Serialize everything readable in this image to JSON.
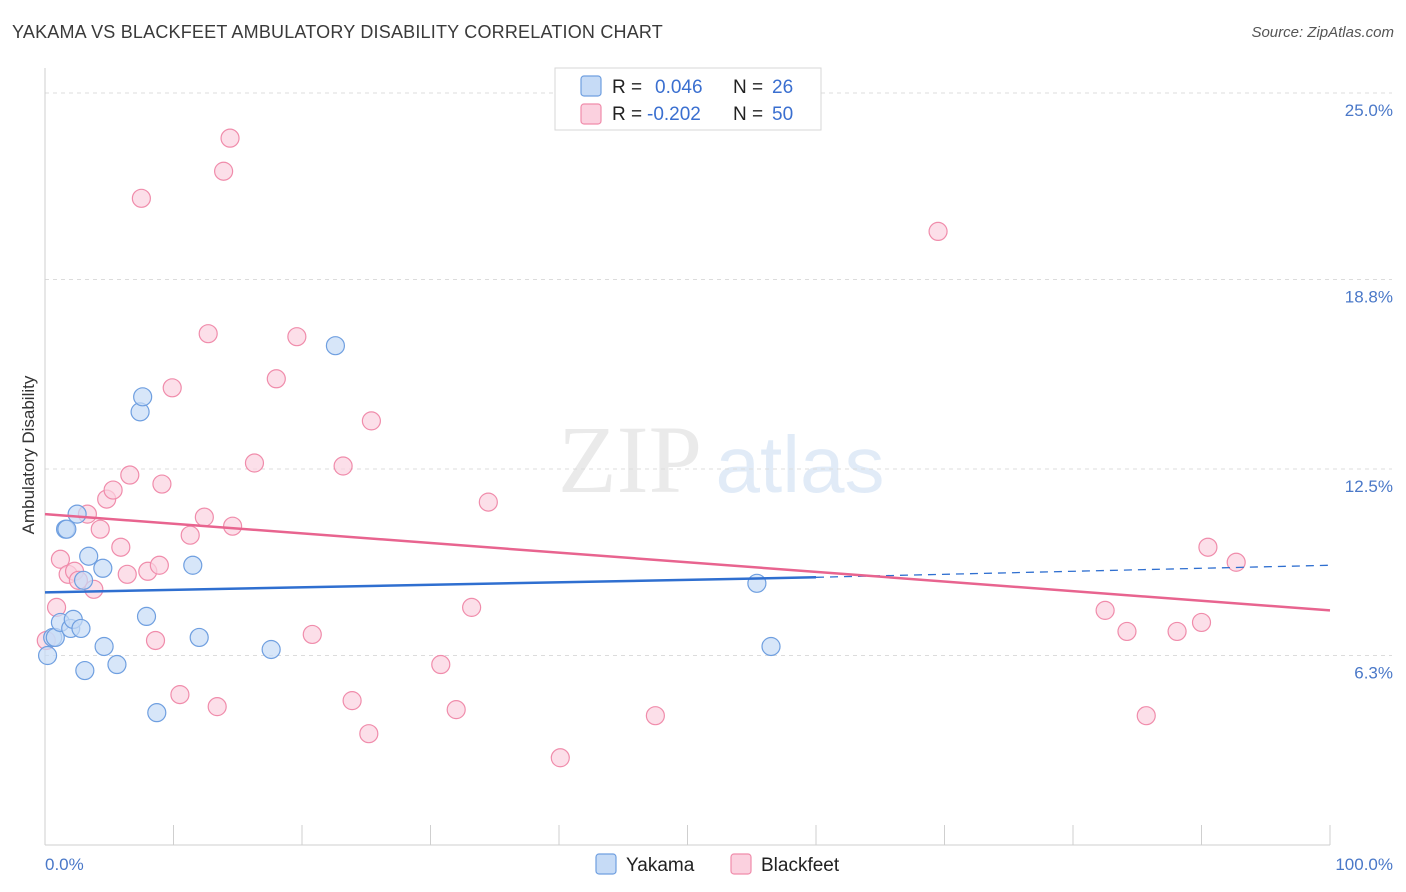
{
  "header": {
    "title": "YAKAMA VS BLACKFEET AMBULATORY DISABILITY CORRELATION CHART",
    "source": "Source: ZipAtlas.com"
  },
  "watermark": {
    "zip": "ZIP",
    "atlas": "atlas"
  },
  "legend": {
    "rows": [
      {
        "r_label": "R =",
        "r_value": "0.046",
        "n_label": "N =",
        "n_value": "26"
      },
      {
        "r_label": "R =",
        "r_value": "-0.202",
        "n_label": "N =",
        "n_value": "50"
      }
    ]
  },
  "bottom_legend": {
    "a": "Yakama",
    "b": "Blackfeet"
  },
  "chart_data": {
    "type": "scatter",
    "title": "YAKAMA VS BLACKFEET AMBULATORY DISABILITY CORRELATION CHART",
    "xlabel": "",
    "ylabel": "Ambulatory Disability",
    "xlim": [
      0,
      100
    ],
    "ylim": [
      0,
      25.5
    ],
    "x_tick_labels": [
      "0.0%",
      "100.0%"
    ],
    "y_ticks": [
      6.3,
      12.5,
      18.8,
      25.0
    ],
    "y_tick_labels": [
      "6.3%",
      "12.5%",
      "18.8%",
      "25.0%"
    ],
    "grid": true,
    "legend_placement": "top-center",
    "colors": {
      "yakama": "#6f9fe0",
      "yakama_line": "#2f6fd0",
      "blackfeet": "#f08cab",
      "blackfeet_line": "#e8648f"
    },
    "series": [
      {
        "name": "Yakama",
        "r": 0.046,
        "n": 26,
        "trend": {
          "x0": 0,
          "y0": 8.4,
          "x1": 60,
          "y1": 8.9,
          "dash_to_x": 100,
          "dash_to_y": 9.3
        },
        "points": [
          [
            0.2,
            6.3
          ],
          [
            0.6,
            6.9
          ],
          [
            0.8,
            6.9
          ],
          [
            1.2,
            7.4
          ],
          [
            1.6,
            10.5
          ],
          [
            1.7,
            10.5
          ],
          [
            2.0,
            7.2
          ],
          [
            2.2,
            7.5
          ],
          [
            2.5,
            11.0
          ],
          [
            2.8,
            7.2
          ],
          [
            3.0,
            8.8
          ],
          [
            3.1,
            5.8
          ],
          [
            3.4,
            9.6
          ],
          [
            4.5,
            9.2
          ],
          [
            4.6,
            6.6
          ],
          [
            5.6,
            6.0
          ],
          [
            7.4,
            14.4
          ],
          [
            7.6,
            14.9
          ],
          [
            7.9,
            7.6
          ],
          [
            8.7,
            4.4
          ],
          [
            11.5,
            9.3
          ],
          [
            12.0,
            6.9
          ],
          [
            17.6,
            6.5
          ],
          [
            22.6,
            16.6
          ],
          [
            55.4,
            8.7
          ],
          [
            56.5,
            6.6
          ]
        ]
      },
      {
        "name": "Blackfeet",
        "r": -0.202,
        "n": 50,
        "trend": {
          "x0": 0,
          "y0": 11.0,
          "x1": 100,
          "y1": 7.8
        },
        "points": [
          [
            0.1,
            6.8
          ],
          [
            0.9,
            7.9
          ],
          [
            1.2,
            9.5
          ],
          [
            1.8,
            9.0
          ],
          [
            2.3,
            9.1
          ],
          [
            2.6,
            8.8
          ],
          [
            3.3,
            11.0
          ],
          [
            3.8,
            8.5
          ],
          [
            4.3,
            10.5
          ],
          [
            4.8,
            11.5
          ],
          [
            5.3,
            11.8
          ],
          [
            5.9,
            9.9
          ],
          [
            6.4,
            9.0
          ],
          [
            6.6,
            12.3
          ],
          [
            7.5,
            21.5
          ],
          [
            8.0,
            9.1
          ],
          [
            8.6,
            6.8
          ],
          [
            8.9,
            9.3
          ],
          [
            9.1,
            12.0
          ],
          [
            9.9,
            15.2
          ],
          [
            10.5,
            5.0
          ],
          [
            11.3,
            10.3
          ],
          [
            12.4,
            10.9
          ],
          [
            12.7,
            17.0
          ],
          [
            13.4,
            4.6
          ],
          [
            13.9,
            22.4
          ],
          [
            14.4,
            23.5
          ],
          [
            14.6,
            10.6
          ],
          [
            16.3,
            12.7
          ],
          [
            18.0,
            15.5
          ],
          [
            19.6,
            16.9
          ],
          [
            20.8,
            7.0
          ],
          [
            23.2,
            12.6
          ],
          [
            23.9,
            4.8
          ],
          [
            25.2,
            3.7
          ],
          [
            25.4,
            14.1
          ],
          [
            30.8,
            6.0
          ],
          [
            32.0,
            4.5
          ],
          [
            33.2,
            7.9
          ],
          [
            34.5,
            11.4
          ],
          [
            40.1,
            2.9
          ],
          [
            47.5,
            4.3
          ],
          [
            69.5,
            20.4
          ],
          [
            82.5,
            7.8
          ],
          [
            84.2,
            7.1
          ],
          [
            85.7,
            4.3
          ],
          [
            88.1,
            7.1
          ],
          [
            90.0,
            7.4
          ],
          [
            90.5,
            9.9
          ],
          [
            92.7,
            9.4
          ]
        ]
      }
    ]
  }
}
